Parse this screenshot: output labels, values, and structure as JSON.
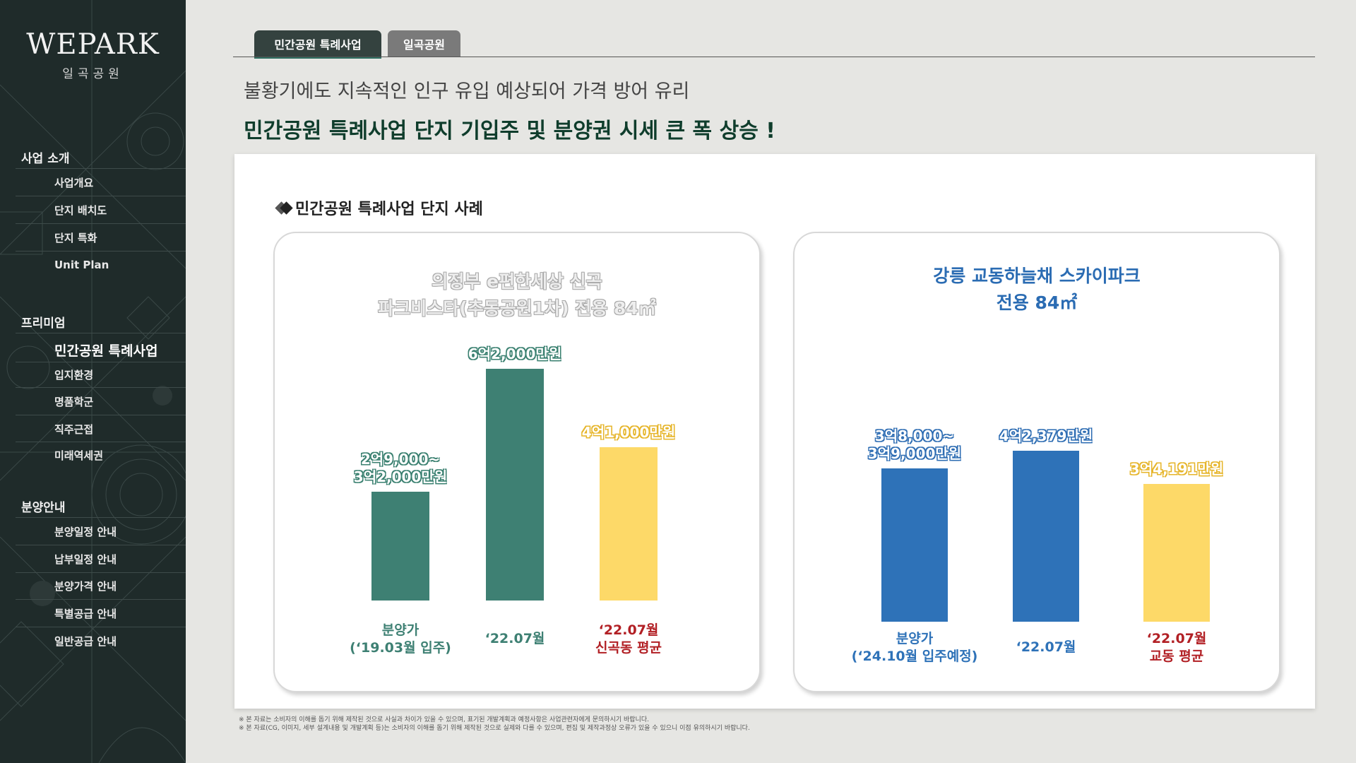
{
  "sidebar": {
    "logo": "WEPARK",
    "logo_sub": "일곡공원",
    "sections": [
      {
        "title": "사업 소개",
        "items": [
          "사업개요",
          "단지 배치도",
          "단지 특화",
          "Unit Plan"
        ]
      },
      {
        "title": "프리미엄",
        "items": [
          "민간공원 특례사업",
          "입지환경",
          "명품학군",
          "직주근접",
          "미래역세권"
        ]
      },
      {
        "title": "분양안내",
        "items": [
          "분양일정 안내",
          "납부일정 안내",
          "분양가격 안내",
          "특별공급 안내",
          "일반공급 안내"
        ]
      }
    ]
  },
  "tabs": [
    "민간공원 특례사업",
    "일곡공원"
  ],
  "headline": {
    "sub": "불황기에도 지속적인 인구 유입 예상되어 가격 방어 유리",
    "main": "민간공원 특례사업 단지 기입주 및 분양권 시세 큰 폭 상승 !"
  },
  "panel_title": "민간공원 특례사업 단지 사례",
  "colors": {
    "green": "#3e8073",
    "yellow": "#fdd968",
    "blue": "#2e72b8",
    "red": "#b22025",
    "sidebar": "#1f2b2a"
  },
  "chart_data": [
    {
      "type": "bar",
      "title_lines": [
        "의정부 e편한세상 신곡",
        "파크비스타(추동공원1차) 전용 84㎡"
      ],
      "categories": [
        {
          "lines": [
            "분양가",
            "(‘19.03월 입주)"
          ],
          "color": "#3e8073"
        },
        {
          "lines": [
            "‘22.07월"
          ],
          "color": "#3e8073"
        },
        {
          "lines": [
            "‘22.07월",
            "신곡동 평균"
          ],
          "color": "#b22025"
        }
      ],
      "values": [
        29000,
        62000,
        41000
      ],
      "value_labels": [
        [
          "2억9,000~",
          "3억2,000만원"
        ],
        [
          "6억2,000만원"
        ],
        [
          "4억1,000만원"
        ]
      ],
      "bar_colors": [
        "#3e8073",
        "#3e8073",
        "#fdd968"
      ],
      "ylim": [
        0,
        68000
      ]
    },
    {
      "type": "bar",
      "title_lines": [
        "강릉 교동하늘채 스카이파크",
        "전용 84㎡"
      ],
      "categories": [
        {
          "lines": [
            "분양가",
            "(‘24.10월 입주예정)"
          ],
          "color": "#2e72b8"
        },
        {
          "lines": [
            "‘22.07월"
          ],
          "color": "#2e72b8"
        },
        {
          "lines": [
            "‘22.07월",
            "교동 평균"
          ],
          "color": "#b22025"
        }
      ],
      "values": [
        38000,
        42379,
        34191
      ],
      "value_labels": [
        [
          "3억8,000~",
          "3억9,000만원"
        ],
        [
          "4억2,379만원"
        ],
        [
          "3억4,191만원"
        ]
      ],
      "bar_colors": [
        "#2e72b8",
        "#2e72b8",
        "#fdd968"
      ],
      "ylim": [
        0,
        47000
      ]
    }
  ],
  "footnotes": [
    "※ 본 자료는 소비자의 이해를 돕기 위해 제작된 것으로 사실과 차이가 있을 수 있으며, 표기된 개발계획과 예정사항은 사업관련자에게 문의하시기 바랍니다.",
    "※ 본 자료(CG, 이미지, 세부 설계내용 및 개발계획 등)는 소비자의 이해를 돕기 위해 제작된 것으로 실제와 다를 수 있으며, 편집 및 제작과정상 오류가 있을 수 있으니 이점 유의하시기 바랍니다."
  ]
}
